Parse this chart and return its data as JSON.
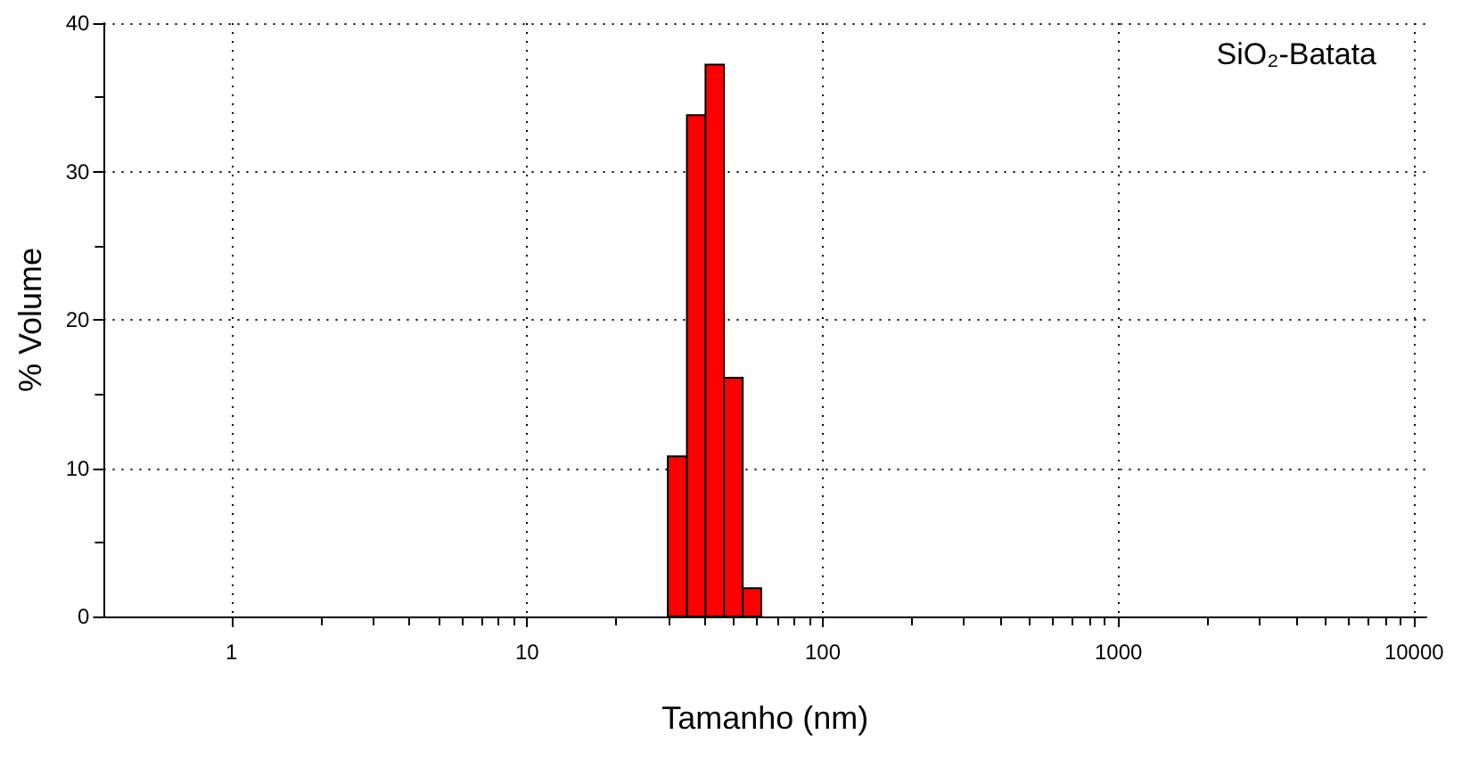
{
  "chart_data": {
    "type": "histogram",
    "xlabel": "Tamanho (nm)",
    "ylabel": "% Volume",
    "annotations": [
      "SiO₂-Batata"
    ],
    "log": "x",
    "bins": [
      29.9,
      34.7,
      40.1,
      46.3,
      53.6,
      61.9
    ],
    "values": [
      10.8,
      33.8,
      37.2,
      16.1,
      1.9
    ],
    "color": "#ff0000",
    "xlim": [
      0.37,
      11000
    ],
    "xticks": [
      1,
      {
        "value": 2,
        "label": null
      },
      {
        "value": 3,
        "label": null
      },
      {
        "value": 4,
        "label": null
      },
      {
        "value": 5,
        "label": null
      },
      {
        "value": 6,
        "label": null
      },
      {
        "value": 7,
        "label": null
      },
      {
        "value": 8,
        "label": null
      },
      {
        "value": 9,
        "label": null
      },
      10,
      {
        "value": 20,
        "label": null
      },
      {
        "value": 30,
        "label": null
      },
      {
        "value": 40,
        "label": null
      },
      {
        "value": 50,
        "label": null
      },
      {
        "value": 60,
        "label": null
      },
      {
        "value": 70,
        "label": null
      },
      {
        "value": 80,
        "label": null
      },
      {
        "value": 90,
        "label": null
      },
      100,
      {
        "value": 200,
        "label": null
      },
      {
        "value": 300,
        "label": null
      },
      {
        "value": 400,
        "label": null
      },
      {
        "value": 500,
        "label": null
      },
      {
        "value": 600,
        "label": null
      },
      {
        "value": 700,
        "label": null
      },
      {
        "value": 800,
        "label": null
      },
      {
        "value": 900,
        "label": null
      },
      1000,
      {
        "value": 2000,
        "label": null
      },
      {
        "value": 3000,
        "label": null
      },
      {
        "value": 4000,
        "label": null
      },
      {
        "value": 5000,
        "label": null
      },
      {
        "value": 6000,
        "label": null
      },
      {
        "value": 7000,
        "label": null
      },
      {
        "value": 8000,
        "label": null
      },
      {
        "value": 9000,
        "label": null
      },
      10000
    ],
    "ylim": [
      0,
      40
    ],
    "yticks": [
      0,
      {
        "value": 5,
        "label": null
      },
      10,
      {
        "value": 15,
        "label": null
      },
      20,
      {
        "value": 25,
        "label": null
      },
      30,
      {
        "value": 35,
        "label": null
      },
      40
    ],
    "grid": true
  }
}
